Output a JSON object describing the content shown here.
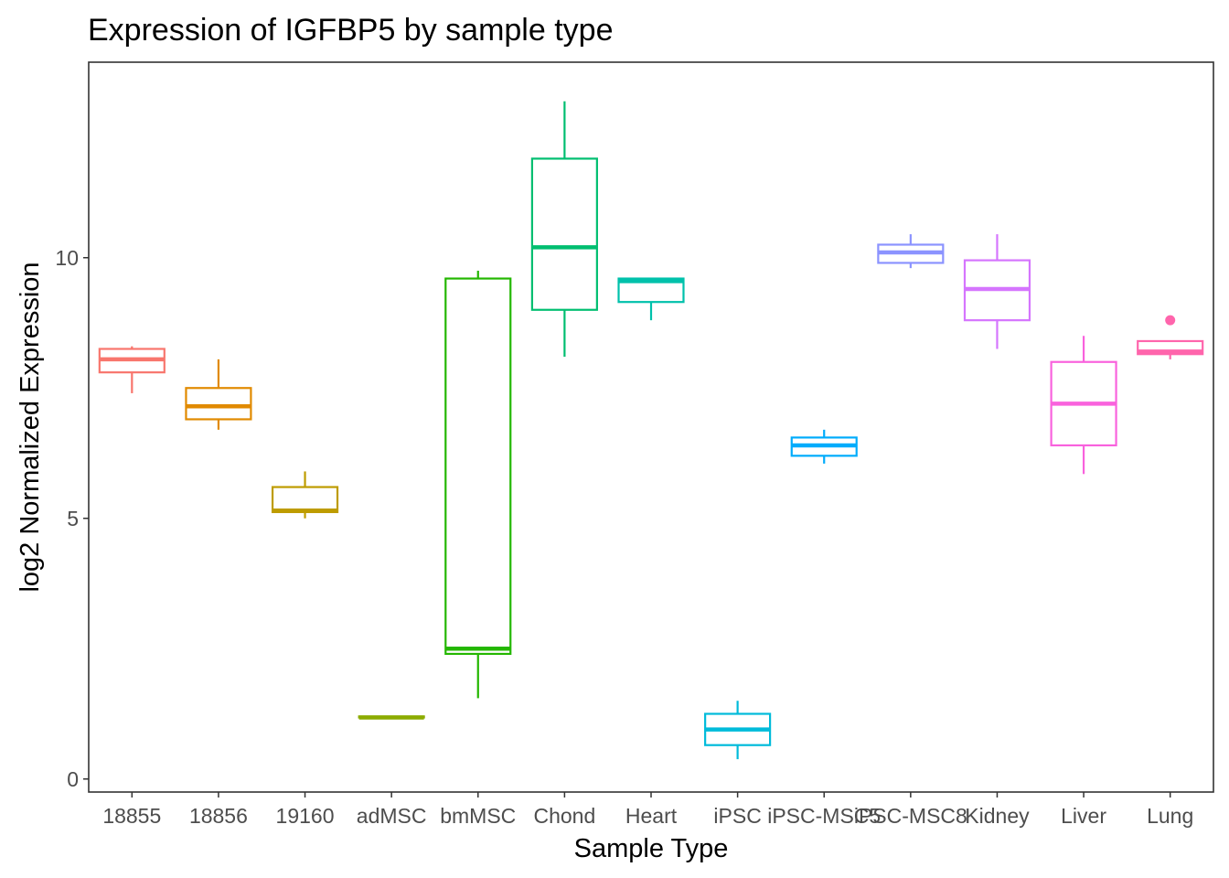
{
  "chart_data": {
    "type": "boxplot",
    "title": "Expression of IGFBP5 by sample type",
    "xlabel": "Sample Type",
    "ylabel": "log2 Normalized Expression",
    "ylim": [
      -0.25,
      13.75
    ],
    "yticks": [
      0,
      5,
      10
    ],
    "grid": false,
    "legend": "none",
    "categories": [
      "18855",
      "18856",
      "19160",
      "adMSC",
      "bmMSC",
      "Chond",
      "Heart",
      "iPSC",
      "iPSC-MSC5",
      "iPSC-MSC8",
      "Kidney",
      "Liver",
      "Lung"
    ],
    "colors": [
      "#F8766D",
      "#E18A00",
      "#BE9C00",
      "#8CAB00",
      "#24B700",
      "#00BE70",
      "#00C1AB",
      "#00BBDA",
      "#00ACFC",
      "#8B93FF",
      "#D575FE",
      "#F962DD",
      "#FF65AC"
    ],
    "series": [
      {
        "category": "18855",
        "min": 7.4,
        "q1": 7.8,
        "median": 8.05,
        "q3": 8.25,
        "max": 8.3,
        "outliers": []
      },
      {
        "category": "18856",
        "min": 6.7,
        "q1": 6.9,
        "median": 7.15,
        "q3": 7.5,
        "max": 8.05,
        "outliers": []
      },
      {
        "category": "19160",
        "min": 5.0,
        "q1": 5.12,
        "median": 5.15,
        "q3": 5.6,
        "max": 5.9,
        "outliers": []
      },
      {
        "category": "adMSC",
        "min": 1.18,
        "q1": 1.18,
        "median": 1.18,
        "q3": 1.2,
        "max": 1.2,
        "outliers": []
      },
      {
        "category": "bmMSC",
        "min": 1.55,
        "q1": 2.4,
        "median": 2.5,
        "q3": 9.6,
        "max": 9.75,
        "outliers": []
      },
      {
        "category": "Chond",
        "min": 8.1,
        "q1": 9.0,
        "median": 10.2,
        "q3": 11.9,
        "max": 13.0,
        "outliers": []
      },
      {
        "category": "Heart",
        "min": 8.8,
        "q1": 9.15,
        "median": 9.55,
        "q3": 9.6,
        "max": 9.6,
        "outliers": []
      },
      {
        "category": "iPSC",
        "min": 0.38,
        "q1": 0.65,
        "median": 0.95,
        "q3": 1.25,
        "max": 1.5,
        "outliers": []
      },
      {
        "category": "iPSC-MSC5",
        "min": 6.05,
        "q1": 6.2,
        "median": 6.4,
        "q3": 6.55,
        "max": 6.7,
        "outliers": []
      },
      {
        "category": "iPSC-MSC8",
        "min": 9.8,
        "q1": 9.9,
        "median": 10.1,
        "q3": 10.25,
        "max": 10.45,
        "outliers": []
      },
      {
        "category": "Kidney",
        "min": 8.25,
        "q1": 8.8,
        "median": 9.4,
        "q3": 9.95,
        "max": 10.45,
        "outliers": []
      },
      {
        "category": "Liver",
        "min": 5.85,
        "q1": 6.4,
        "median": 7.2,
        "q3": 8.0,
        "max": 8.5,
        "outliers": []
      },
      {
        "category": "Lung",
        "min": 8.05,
        "q1": 8.15,
        "median": 8.2,
        "q3": 8.4,
        "max": 8.4,
        "outliers": [
          8.8
        ]
      }
    ]
  }
}
